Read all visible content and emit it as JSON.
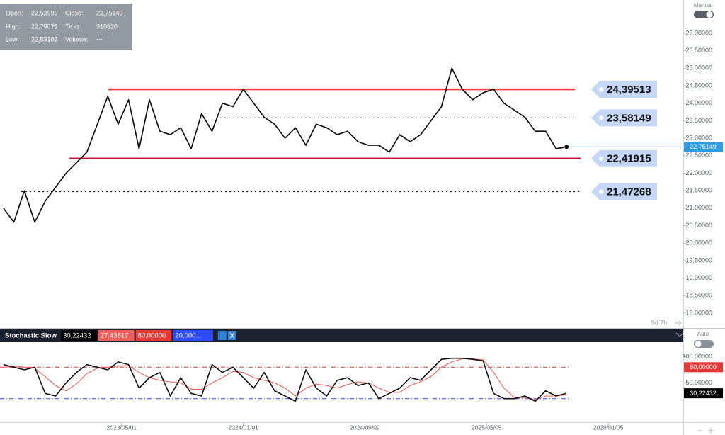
{
  "ui": {
    "info": [
      {
        "label": "Open:",
        "value": "22,53999"
      },
      {
        "label": "Close:",
        "value": "22,75149"
      },
      {
        "label": "High:",
        "value": "22,79071"
      },
      {
        "label": "Ticks:",
        "value": "310820"
      },
      {
        "label": "Low:",
        "value": "22,53102"
      },
      {
        "label": "Volume:",
        "value": "---"
      }
    ],
    "toggle_top": "Manual",
    "toggle_bottom": "Auto",
    "timer": "5d 7h"
  },
  "chart_data": [
    {
      "type": "line",
      "x": [
        "2022/09/05",
        "2022/09/26",
        "2022/10/17",
        "2022/11/07",
        "2022/11/28",
        "2022/12/19",
        "2023/01/09",
        "2023/01/30",
        "2023/02/20",
        "2023/03/13",
        "2023/04/03",
        "2023/04/24",
        "2023/05/15",
        "2023/06/05",
        "2023/06/26",
        "2023/07/17",
        "2023/08/07",
        "2023/08/28",
        "2023/09/18",
        "2023/10/09",
        "2023/10/30",
        "2023/11/20",
        "2023/12/11",
        "2024/01/01",
        "2024/01/22",
        "2024/02/12",
        "2024/03/04",
        "2024/03/25",
        "2024/04/15",
        "2024/05/06",
        "2024/05/27",
        "2024/06/17",
        "2024/07/08",
        "2024/07/29",
        "2024/08/19",
        "2024/09/09",
        "2024/09/30",
        "2024/10/21",
        "2024/11/11",
        "2024/12/02",
        "2024/12/23",
        "2025/01/13",
        "2025/02/03",
        "2025/02/24",
        "2025/03/17",
        "2025/04/07",
        "2025/04/28",
        "2025/05/19",
        "2025/06/09",
        "2025/06/30",
        "2025/07/21",
        "2025/08/11",
        "2025/09/01",
        "2025/09/22",
        "2025/10/13"
      ],
      "values": [
        21.0,
        20.6,
        21.5,
        20.6,
        21.2,
        21.6,
        22.0,
        22.3,
        22.6,
        23.4,
        24.2,
        23.4,
        24.1,
        22.7,
        24.1,
        23.2,
        23.1,
        23.3,
        22.7,
        23.7,
        23.2,
        24.0,
        23.9,
        24.4,
        24.0,
        23.6,
        23.4,
        23.0,
        23.3,
        22.8,
        23.4,
        23.3,
        23.1,
        23.2,
        22.9,
        22.8,
        22.8,
        22.6,
        23.1,
        22.9,
        23.1,
        23.5,
        23.9,
        25.0,
        24.4,
        24.1,
        24.3,
        24.4,
        24.0,
        23.8,
        23.6,
        23.2,
        23.2,
        22.7,
        22.75149
      ],
      "color": "#111111",
      "xlim": [
        "2022/08/29",
        "2026/06/05"
      ],
      "ylim": [
        17.575,
        26.95
      ],
      "yticks": [
        {
          "value": 18,
          "label": "18.00000"
        },
        {
          "value": 18.5,
          "label": "18.50000"
        },
        {
          "value": 19,
          "label": "19.00000"
        },
        {
          "value": 19.5,
          "label": "19.50000"
        },
        {
          "value": 20,
          "label": "20.00000"
        },
        {
          "value": 20.5,
          "label": "20.50000"
        },
        {
          "value": 21,
          "label": "21.00000"
        },
        {
          "value": 21.5,
          "label": "21.50000"
        },
        {
          "value": 22,
          "label": "22.00000"
        },
        {
          "value": 22.5,
          "label": "22.50000"
        },
        {
          "value": 23,
          "label": "23.00000"
        },
        {
          "value": 23.5,
          "label": "23.50000"
        },
        {
          "value": 24,
          "label": "24.00000"
        },
        {
          "value": 24.5,
          "label": "24.50000"
        },
        {
          "value": 25,
          "label": "25.00000"
        },
        {
          "value": 25.5,
          "label": "25.50000"
        },
        {
          "value": 26,
          "label": "26.00000"
        }
      ],
      "levels": [
        {
          "value": 24.39513,
          "label": "24,39513",
          "color": "#f03c3c",
          "style": "solid"
        },
        {
          "value": 23.58149,
          "label": "23,58149",
          "color": "#222222",
          "style": "dotted"
        },
        {
          "value": 22.41915,
          "label": "22,41915",
          "color": "#cc1040",
          "style": "solid"
        },
        {
          "value": 21.47268,
          "label": "21,47268",
          "color": "#222222",
          "style": "dotted"
        }
      ],
      "last_price": {
        "value": 22.75149,
        "label": "22,75149",
        "color": "#2f9be0"
      }
    },
    {
      "type": "line",
      "title": "Stochastic Slow",
      "x": [
        "2022/09/05",
        "2022/09/26",
        "2022/10/17",
        "2022/11/07",
        "2022/11/28",
        "2022/12/19",
        "2023/01/09",
        "2023/01/30",
        "2023/02/20",
        "2023/03/13",
        "2023/04/03",
        "2023/04/24",
        "2023/05/15",
        "2023/06/05",
        "2023/06/26",
        "2023/07/17",
        "2023/08/07",
        "2023/08/28",
        "2023/09/18",
        "2023/10/09",
        "2023/10/30",
        "2023/11/20",
        "2023/12/11",
        "2024/01/01",
        "2024/01/22",
        "2024/02/12",
        "2024/03/04",
        "2024/03/25",
        "2024/04/15",
        "2024/05/06",
        "2024/05/27",
        "2024/06/17",
        "2024/07/08",
        "2024/07/29",
        "2024/08/19",
        "2024/09/09",
        "2024/09/30",
        "2024/10/21",
        "2024/11/11",
        "2024/12/02",
        "2024/12/23",
        "2025/01/13",
        "2025/02/03",
        "2025/02/24",
        "2025/03/17",
        "2025/04/07",
        "2025/04/28",
        "2025/05/19",
        "2025/06/09",
        "2025/06/30",
        "2025/07/21",
        "2025/08/11",
        "2025/09/01",
        "2025/09/22",
        "2025/10/13"
      ],
      "series": [
        {
          "color": "#111111",
          "values": [
            85,
            80,
            75,
            80,
            30,
            25,
            50,
            70,
            85,
            80,
            75,
            90,
            85,
            40,
            60,
            70,
            25,
            60,
            30,
            25,
            85,
            70,
            80,
            60,
            40,
            70,
            35,
            25,
            15,
            75,
            40,
            25,
            55,
            60,
            45,
            50,
            20,
            30,
            40,
            60,
            55,
            75,
            95,
            97,
            97,
            95,
            92,
            30,
            20,
            20,
            25,
            15,
            35,
            25,
            30.22432
          ]
        },
        {
          "color": "#f0605a",
          "values": [
            80,
            82,
            80,
            78,
            62,
            45,
            35,
            48,
            68,
            78,
            80,
            82,
            83,
            70,
            60,
            55,
            52,
            50,
            38,
            38,
            50,
            60,
            72,
            70,
            60,
            55,
            50,
            40,
            25,
            40,
            48,
            45,
            40,
            47,
            52,
            50,
            40,
            32,
            32,
            45,
            52,
            62,
            80,
            90,
            96,
            96,
            94,
            70,
            40,
            22,
            22,
            18,
            25,
            25,
            27.43817
          ]
        }
      ],
      "last_values": [
        {
          "value": 30.22432,
          "label": "30,22432"
        },
        {
          "value": 27.43817,
          "label": "27,43817"
        }
      ],
      "levels": [
        {
          "value": 80,
          "label": "80,00000",
          "color": "#e53935"
        },
        {
          "value": 20,
          "label": "20,000...",
          "color": "#2c4bff"
        }
      ],
      "xlim": [
        "2022/08/29",
        "2026/06/05"
      ],
      "ylim": [
        -25,
        125
      ],
      "yticks": [
        {
          "value": 50,
          "label": "50.00000"
        },
        {
          "value": 100,
          "label": "100.00000"
        }
      ],
      "xticks": [
        "2023/05/01",
        "2024/01/01",
        "2024/09/02",
        "2025/05/05",
        "2026/01/05"
      ]
    }
  ]
}
